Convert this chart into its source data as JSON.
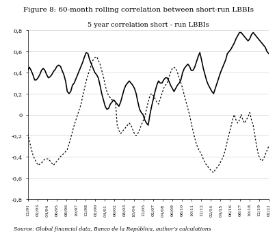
{
  "title": "Figure 8: 60-month rolling correlation between short-run LBBIs",
  "chart_title": "5 year correlation short - run LBBIs",
  "source": "Source: Global financial data, Banco de la República, author’s calculations",
  "ylabel": "",
  "ylim": [
    -0.8,
    0.8
  ],
  "yticks": [
    -0.8,
    -0.6,
    -0.4,
    -0.2,
    0,
    0.2,
    0.4,
    0.6,
    0.8
  ],
  "ytick_labels": [
    "-0,8",
    "-0,6",
    "-0,4",
    "-0,2",
    "0",
    "0,2",
    "0,4",
    "0,6",
    "0,8"
  ],
  "xtick_labels": [
    "12/91",
    "02/93",
    "04/94",
    "06/95",
    "08/96",
    "10/97",
    "12/98",
    "02/00",
    "04/01",
    "06/02",
    "08/03",
    "10/04",
    "12/05",
    "02/07",
    "04/08",
    "06/09",
    "08/10",
    "10/11",
    "12/12",
    "02/14",
    "04/15",
    "06/16",
    "08/17",
    "10/18",
    "12/19",
    "02/21"
  ],
  "fx_credit": [
    0.42,
    0.45,
    0.42,
    0.38,
    0.33,
    0.33,
    0.35,
    0.38,
    0.42,
    0.44,
    0.42,
    0.38,
    0.35,
    0.36,
    0.38,
    0.41,
    0.43,
    0.46,
    0.47,
    0.46,
    0.42,
    0.38,
    0.32,
    0.22,
    0.2,
    0.22,
    0.28,
    0.3,
    0.34,
    0.38,
    0.42,
    0.46,
    0.5,
    0.55,
    0.59,
    0.58,
    0.52,
    0.48,
    0.44,
    0.4,
    0.38,
    0.35,
    0.28,
    0.2,
    0.14,
    0.08,
    0.05,
    0.06,
    0.1,
    0.12,
    0.14,
    0.12,
    0.1,
    0.08,
    0.12,
    0.18,
    0.24,
    0.28,
    0.3,
    0.32,
    0.3,
    0.28,
    0.25,
    0.2,
    0.12,
    0.05,
    0.02,
    0.0,
    -0.05,
    -0.08,
    -0.1,
    0.0,
    0.08,
    0.15,
    0.22,
    0.28,
    0.32,
    0.3,
    0.3,
    0.33,
    0.35,
    0.35,
    0.32,
    0.28,
    0.25,
    0.22,
    0.25,
    0.28,
    0.3,
    0.33,
    0.4,
    0.44,
    0.46,
    0.48,
    0.46,
    0.42,
    0.42,
    0.45,
    0.5,
    0.55,
    0.59,
    0.52,
    0.44,
    0.38,
    0.32,
    0.28,
    0.25,
    0.22,
    0.2,
    0.25,
    0.3,
    0.35,
    0.4,
    0.44,
    0.48,
    0.52,
    0.58,
    0.6,
    0.62,
    0.65,
    0.68,
    0.72,
    0.75,
    0.78,
    0.78,
    0.76,
    0.74,
    0.72,
    0.7,
    0.72,
    0.76,
    0.78,
    0.76,
    0.74,
    0.72,
    0.7,
    0.68,
    0.66,
    0.64,
    0.6,
    0.58
  ],
  "stocks_credit": [
    -0.18,
    -0.25,
    -0.32,
    -0.38,
    -0.42,
    -0.45,
    -0.48,
    -0.47,
    -0.46,
    -0.44,
    -0.42,
    -0.42,
    -0.42,
    -0.44,
    -0.46,
    -0.48,
    -0.46,
    -0.44,
    -0.42,
    -0.4,
    -0.38,
    -0.37,
    -0.35,
    -0.33,
    -0.28,
    -0.22,
    -0.16,
    -0.1,
    -0.05,
    0.0,
    0.05,
    0.1,
    0.18,
    0.25,
    0.32,
    0.38,
    0.42,
    0.48,
    0.52,
    0.54,
    0.55,
    0.52,
    0.48,
    0.42,
    0.36,
    0.28,
    0.22,
    0.18,
    0.16,
    0.14,
    0.14,
    0.12,
    -0.1,
    -0.15,
    -0.18,
    -0.16,
    -0.14,
    -0.12,
    -0.1,
    -0.08,
    -0.1,
    -0.14,
    -0.18,
    -0.2,
    -0.18,
    -0.14,
    -0.1,
    -0.06,
    -0.02,
    0.05,
    0.12,
    0.18,
    0.2,
    0.18,
    0.15,
    0.12,
    0.1,
    0.15,
    0.2,
    0.25,
    0.28,
    0.3,
    0.35,
    0.4,
    0.44,
    0.45,
    0.44,
    0.4,
    0.35,
    0.3,
    0.25,
    0.18,
    0.12,
    0.06,
    0.0,
    -0.08,
    -0.15,
    -0.22,
    -0.28,
    -0.32,
    -0.35,
    -0.38,
    -0.42,
    -0.46,
    -0.48,
    -0.5,
    -0.52,
    -0.54,
    -0.55,
    -0.52,
    -0.5,
    -0.48,
    -0.45,
    -0.42,
    -0.38,
    -0.32,
    -0.25,
    -0.18,
    -0.12,
    -0.05,
    0.0,
    -0.05,
    -0.08,
    -0.05,
    0.0,
    -0.05,
    -0.08,
    -0.05,
    -0.02,
    0.02,
    -0.05,
    -0.1,
    -0.2,
    -0.3,
    -0.38,
    -0.42,
    -0.44,
    -0.42,
    -0.38,
    -0.34,
    -0.3
  ]
}
